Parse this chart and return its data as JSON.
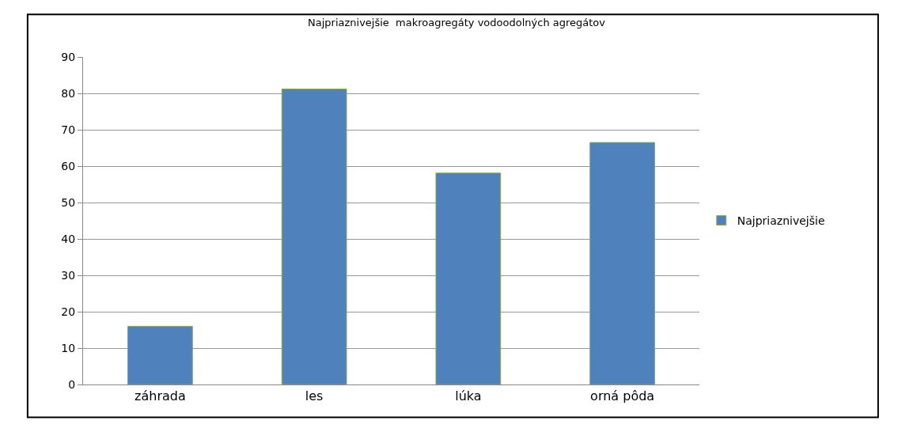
{
  "chart_data": {
    "type": "bar",
    "title": "Najpriaznivejšie  makroagregáty vodoodolných agregátov",
    "categories": [
      "záhrada",
      "les",
      "lúka",
      "orná pôda"
    ],
    "series": [
      {
        "name": "Najpriaznivejšie",
        "color": "#4f81bd",
        "values": [
          16,
          81.2,
          58.1,
          66.5
        ]
      }
    ],
    "ylim": [
      0,
      90
    ],
    "yticks": [
      0,
      10,
      20,
      30,
      40,
      50,
      60,
      70,
      80,
      90
    ],
    "grid": "y",
    "legend": "right"
  }
}
